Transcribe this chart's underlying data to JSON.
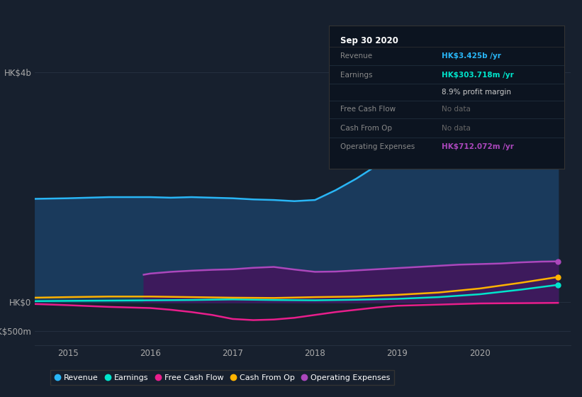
{
  "bg_color": "#17202e",
  "plot_bg_color": "#17202e",
  "grid_color": "#253040",
  "yticks_labels": [
    "HK$4b",
    "HK$0",
    "-HK$500m"
  ],
  "yticks_values": [
    4000000000,
    0,
    -500000000
  ],
  "xlim": [
    2014.6,
    2021.1
  ],
  "ylim": [
    -750000000,
    4500000000
  ],
  "series": {
    "Revenue": {
      "color": "#29b6f6",
      "fill_color": "#1a3a5c",
      "x": [
        2014.6,
        2015.0,
        2015.25,
        2015.5,
        2015.75,
        2016.0,
        2016.25,
        2016.5,
        2016.75,
        2017.0,
        2017.25,
        2017.5,
        2017.75,
        2018.0,
        2018.25,
        2018.5,
        2018.75,
        2019.0,
        2019.25,
        2019.5,
        2019.75,
        2020.0,
        2020.25,
        2020.5,
        2020.75,
        2020.95
      ],
      "y": [
        1800000000,
        1810000000,
        1820000000,
        1830000000,
        1830000000,
        1830000000,
        1820000000,
        1830000000,
        1820000000,
        1810000000,
        1790000000,
        1780000000,
        1760000000,
        1780000000,
        1950000000,
        2150000000,
        2380000000,
        2500000000,
        2620000000,
        2720000000,
        2820000000,
        2920000000,
        3050000000,
        3150000000,
        3320000000,
        3425000000
      ]
    },
    "Earnings": {
      "color": "#00e5cc",
      "x": [
        2014.6,
        2015.0,
        2015.5,
        2016.0,
        2016.5,
        2017.0,
        2017.5,
        2018.0,
        2018.5,
        2019.0,
        2019.5,
        2020.0,
        2020.5,
        2020.95
      ],
      "y": [
        20000000,
        25000000,
        30000000,
        35000000,
        40000000,
        50000000,
        40000000,
        35000000,
        45000000,
        60000000,
        90000000,
        140000000,
        220000000,
        303718000
      ]
    },
    "FreeCashFlow": {
      "color": "#e91e8c",
      "x": [
        2014.6,
        2015.0,
        2015.5,
        2016.0,
        2016.25,
        2016.5,
        2016.75,
        2017.0,
        2017.25,
        2017.5,
        2017.75,
        2018.0,
        2018.25,
        2018.5,
        2018.75,
        2019.0,
        2019.5,
        2020.0,
        2020.5,
        2020.95
      ],
      "y": [
        -30000000,
        -50000000,
        -80000000,
        -100000000,
        -130000000,
        -170000000,
        -220000000,
        -290000000,
        -310000000,
        -300000000,
        -270000000,
        -220000000,
        -170000000,
        -130000000,
        -90000000,
        -60000000,
        -40000000,
        -20000000,
        -15000000,
        -10000000
      ]
    },
    "CashFromOp": {
      "color": "#ffb300",
      "x": [
        2014.6,
        2015.0,
        2015.5,
        2016.0,
        2016.5,
        2017.0,
        2017.5,
        2018.0,
        2018.5,
        2019.0,
        2019.5,
        2020.0,
        2020.5,
        2020.95
      ],
      "y": [
        80000000,
        90000000,
        100000000,
        100000000,
        90000000,
        80000000,
        75000000,
        90000000,
        100000000,
        130000000,
        170000000,
        240000000,
        340000000,
        440000000
      ]
    },
    "OperatingExpenses": {
      "color": "#ab47bc",
      "fill_color": "#3d1a5c",
      "x": [
        2015.92,
        2016.0,
        2016.25,
        2016.5,
        2016.75,
        2017.0,
        2017.25,
        2017.5,
        2017.75,
        2018.0,
        2018.25,
        2018.5,
        2018.75,
        2019.0,
        2019.25,
        2019.5,
        2019.75,
        2020.0,
        2020.25,
        2020.5,
        2020.75,
        2020.95
      ],
      "y": [
        480000000,
        500000000,
        530000000,
        550000000,
        565000000,
        575000000,
        600000000,
        615000000,
        570000000,
        530000000,
        535000000,
        555000000,
        575000000,
        595000000,
        615000000,
        635000000,
        655000000,
        665000000,
        675000000,
        695000000,
        708000000,
        712072000
      ]
    }
  },
  "tooltip": {
    "header": "Sep 30 2020",
    "rows": [
      {
        "label": "Revenue",
        "value": "HK$3.425b /yr",
        "value_color": "#29b6f6",
        "bold": true
      },
      {
        "label": "Earnings",
        "value": "HK$303.718m /yr",
        "value_color": "#00e5cc",
        "bold": true
      },
      {
        "label": "",
        "value": "8.9% profit margin",
        "value_color": "#cccccc",
        "bold": false
      },
      {
        "label": "Free Cash Flow",
        "value": "No data",
        "value_color": "#666666",
        "bold": false
      },
      {
        "label": "Cash From Op",
        "value": "No data",
        "value_color": "#666666",
        "bold": false
      },
      {
        "label": "Operating Expenses",
        "value": "HK$712.072m /yr",
        "value_color": "#ab47bc",
        "bold": true
      }
    ],
    "bg_color": "#0c1420",
    "border_color": "#333333",
    "label_color": "#888888",
    "header_color": "#ffffff"
  },
  "legend_items": [
    {
      "label": "Revenue",
      "color": "#29b6f6"
    },
    {
      "label": "Earnings",
      "color": "#00e5cc"
    },
    {
      "label": "Free Cash Flow",
      "color": "#e91e8c"
    },
    {
      "label": "Cash From Op",
      "color": "#ffb300"
    },
    {
      "label": "Operating Expenses",
      "color": "#ab47bc"
    }
  ],
  "xticks": [
    2015,
    2016,
    2017,
    2018,
    2019,
    2020
  ],
  "endpoint_x": 2020.95
}
